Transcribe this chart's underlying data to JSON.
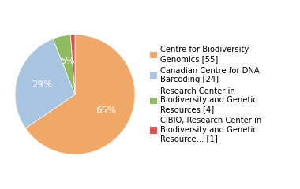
{
  "labels": [
    "Centre for Biodiversity\nGenomics [55]",
    "Canadian Centre for DNA\nBarcoding [24]",
    "Research Center in\nBiodiversity and Genetic\nResources [4]",
    "CIBIO, Research Center in\nBiodiversity and Genetic\nResource... [1]"
  ],
  "values": [
    55,
    24,
    4,
    1
  ],
  "colors": [
    "#f0a868",
    "#a8c4e0",
    "#8fbb60",
    "#d9534f"
  ],
  "background_color": "#ffffff",
  "startangle": 90,
  "legend_fontsize": 7.2
}
